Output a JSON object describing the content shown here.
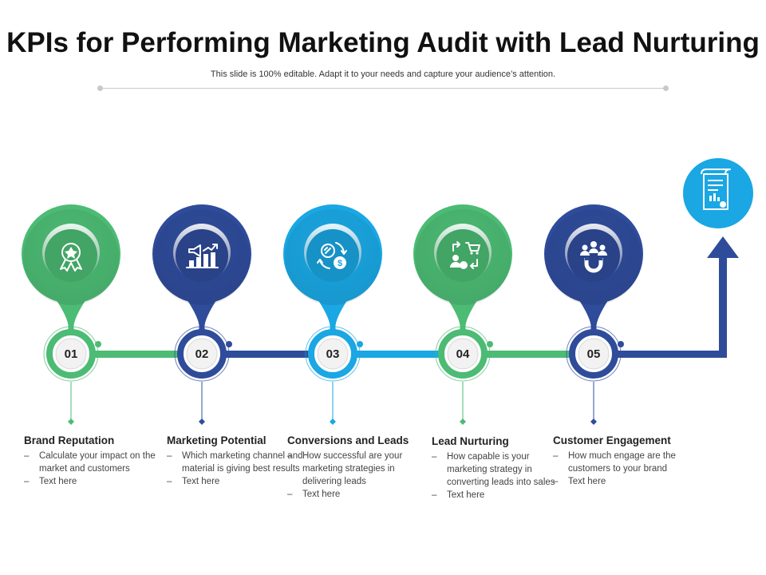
{
  "title": "KPIs for Performing Marketing Audit with Lead Nurturing",
  "subtitle": "This slide is 100% editable. Adapt it to your needs and capture your audience’s attention.",
  "colors": {
    "green": "#4cbb74",
    "navy": "#2f4c9b",
    "cyan": "#1aa7e3"
  },
  "steps": [
    {
      "number": "01",
      "color": "green",
      "icon": "award-ribbon-icon",
      "heading": "Brand Reputation",
      "lines": [
        "Calculate your impact on the market and customers",
        "Text here"
      ]
    },
    {
      "number": "02",
      "color": "navy",
      "icon": "megaphone-chart-icon",
      "heading": "Marketing Potential",
      "lines": [
        "Which marketing channel and material is giving best results",
        "Text here"
      ]
    },
    {
      "number": "03",
      "color": "cyan",
      "icon": "conversion-dollar-icon",
      "heading": "Conversions and Leads",
      "lines": [
        "How successful  are your marketing strategies in delivering leads",
        "Text here"
      ]
    },
    {
      "number": "04",
      "color": "green",
      "icon": "lead-cart-icon",
      "heading": "Lead Nurturing",
      "lines": [
        "How capable is your marketing strategy in converting leads into sales",
        "Text here"
      ]
    },
    {
      "number": "05",
      "color": "navy",
      "icon": "magnet-people-icon",
      "heading": "Customer Engagement",
      "lines": [
        "How much engage are the customers to your brand",
        "Text here"
      ]
    }
  ],
  "final_icon": "report-document-icon"
}
